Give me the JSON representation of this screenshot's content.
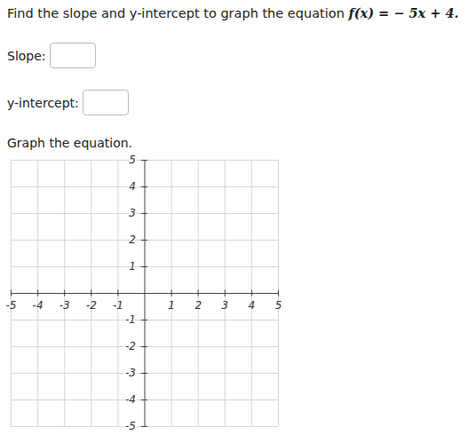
{
  "question": "Find the slope and y-intercept to graph the equation",
  "equation": "f(x) = − 5x + 4.",
  "fields": [
    "Slope:",
    "y-intercept:"
  ],
  "instruction": "Graph the equation.",
  "chart_data": {
    "type": "coordinate_grid",
    "xlim": [
      -5,
      5
    ],
    "ylim": [
      -5,
      5
    ],
    "xticks": [
      -5,
      -4,
      -3,
      -2,
      -1,
      1,
      2,
      3,
      4,
      5
    ],
    "yticks": [
      -5,
      -4,
      -3,
      -2,
      -1,
      1,
      2,
      3,
      4,
      5
    ],
    "grid": true
  }
}
